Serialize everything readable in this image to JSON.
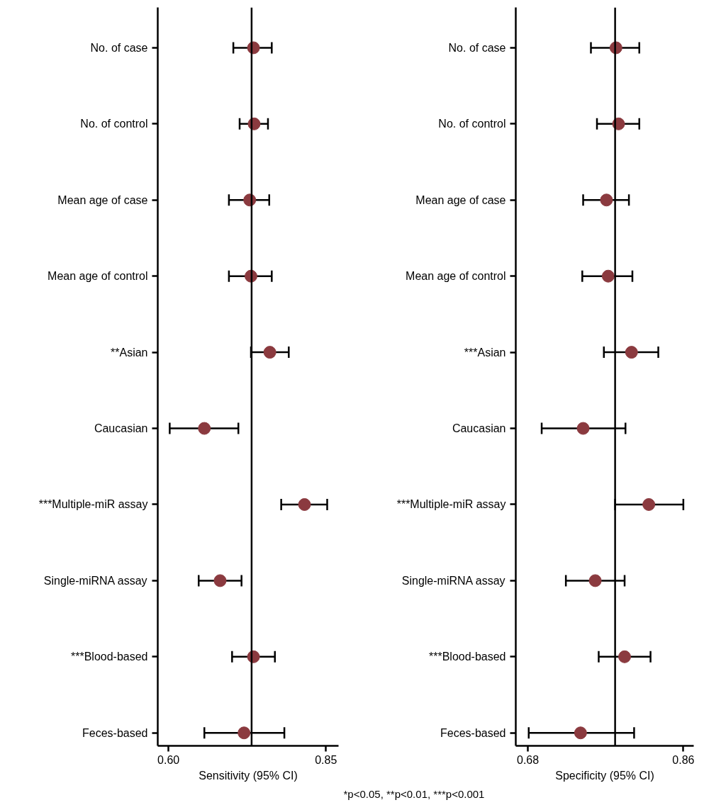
{
  "chart_data": [
    {
      "type": "scatter",
      "orientation": "horizontal",
      "xlabel": "Sensitivity (95% CI)",
      "categories": [
        "No. of case",
        "No. of control",
        "Mean age of case",
        "Mean age of control",
        "**Asian",
        "Caucasian",
        "***Multiple-miR assay",
        "Single-miRNA assay",
        "***Blood-based",
        "Feces-based"
      ],
      "values": [
        0.735,
        0.736,
        0.729,
        0.731,
        0.761,
        0.657,
        0.816,
        0.682,
        0.735,
        0.72
      ],
      "errors": [
        [
          0.703,
          0.764
        ],
        [
          0.713,
          0.758
        ],
        [
          0.696,
          0.76
        ],
        [
          0.696,
          0.764
        ],
        [
          0.731,
          0.791
        ],
        [
          0.602,
          0.711
        ],
        [
          0.779,
          0.852
        ],
        [
          0.648,
          0.716
        ],
        [
          0.701,
          0.769
        ],
        [
          0.657,
          0.784
        ]
      ],
      "color": "#8b3a3f",
      "marker": "circle",
      "xlim": [
        0.583,
        0.87
      ],
      "xticks": [
        {
          "value": 0.6,
          "label": "0.60"
        },
        0.85
      ],
      "ref_lines": [
        {
          "axis": "x",
          "value": 0.732,
          "color": "#000000"
        }
      ]
    },
    {
      "type": "scatter",
      "orientation": "horizontal",
      "xlabel": "Specificity (95% CI)",
      "categories": [
        "No. of case",
        "No. of control",
        "Mean age of case",
        "Mean age of control",
        "***Asian",
        "Caucasian",
        "***Multiple-miR assay",
        "Single-miRNA assay",
        "***Blood-based",
        "Feces-based"
      ],
      "values": [
        0.782,
        0.785,
        0.771,
        0.773,
        0.8,
        0.744,
        0.82,
        0.758,
        0.792,
        0.741
      ],
      "errors": [
        [
          0.753,
          0.809
        ],
        [
          0.76,
          0.809
        ],
        [
          0.744,
          0.797
        ],
        [
          0.743,
          0.801
        ],
        [
          0.768,
          0.831
        ],
        [
          0.696,
          0.793
        ],
        [
          0.781,
          0.86
        ],
        [
          0.724,
          0.792
        ],
        [
          0.762,
          0.822
        ],
        [
          0.681,
          0.803
        ]
      ],
      "color": "#8b3a3f",
      "marker": "circle",
      "xlim": [
        0.666,
        0.872
      ],
      "xticks": [
        0.68,
        0.86
      ],
      "ref_lines": [
        {
          "axis": "x",
          "value": 0.781,
          "color": "#000000"
        }
      ],
      "annotations": [
        "*p<0.05, **p<0.01, ***p<0.001"
      ]
    }
  ]
}
